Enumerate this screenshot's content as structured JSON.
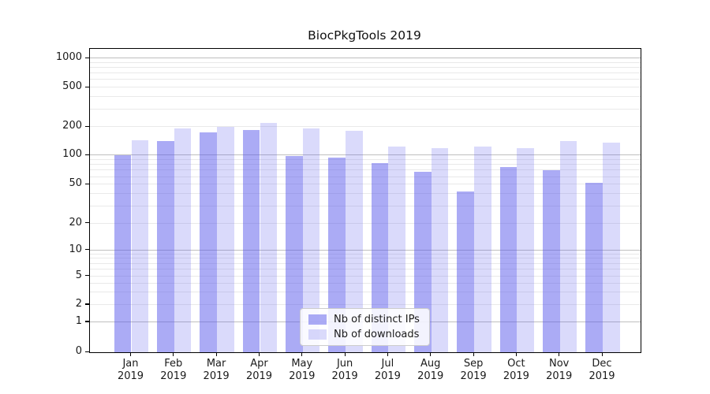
{
  "figure": {
    "background": "#ffffff"
  },
  "chart_data": {
    "type": "bar",
    "title": "BiocPkgTools 2019",
    "categories": [
      "Jan 2019",
      "Feb 2019",
      "Mar 2019",
      "Apr 2019",
      "May 2019",
      "Jun 2019",
      "Jul 2019",
      "Aug 2019",
      "Sep 2019",
      "Oct 2019",
      "Nov 2019",
      "Dec 2019"
    ],
    "x_tick_line1": [
      "Jan",
      "Feb",
      "Mar",
      "Apr",
      "May",
      "Jun",
      "Jul",
      "Aug",
      "Sep",
      "Oct",
      "Nov",
      "Dec"
    ],
    "x_tick_line2": [
      "2019",
      "2019",
      "2019",
      "2019",
      "2019",
      "2019",
      "2019",
      "2019",
      "2019",
      "2019",
      "2019",
      "2019"
    ],
    "series": [
      {
        "name": "Nb of distinct IPs",
        "color": "rgba(88,88,235,0.5)",
        "values": [
          100,
          142,
          177,
          186,
          98,
          95,
          84,
          68,
          43,
          76,
          71,
          52
        ]
      },
      {
        "name": "Nb of downloads",
        "color": "rgba(88,88,235,0.22)",
        "values": [
          145,
          192,
          200,
          222,
          193,
          184,
          124,
          120,
          124,
          120,
          143,
          138
        ]
      }
    ],
    "yscale": "log-like (symlog with 0 baseline)",
    "ylim": [
      0,
      1250
    ],
    "yticks": [
      {
        "label": "1000",
        "value": 1000
      },
      {
        "label": "500",
        "value": 500
      },
      {
        "label": "200",
        "value": 200
      },
      {
        "label": "100",
        "value": 100
      },
      {
        "label": "50",
        "value": 50
      },
      {
        "label": "20",
        "value": 20
      },
      {
        "label": "10",
        "value": 10
      },
      {
        "label": "5",
        "value": 5
      },
      {
        "label": "2",
        "value": 2
      },
      {
        "label": "1",
        "value": 1
      },
      {
        "label": "0",
        "value": 0
      }
    ],
    "grid": true,
    "legend_position": "lower center"
  }
}
